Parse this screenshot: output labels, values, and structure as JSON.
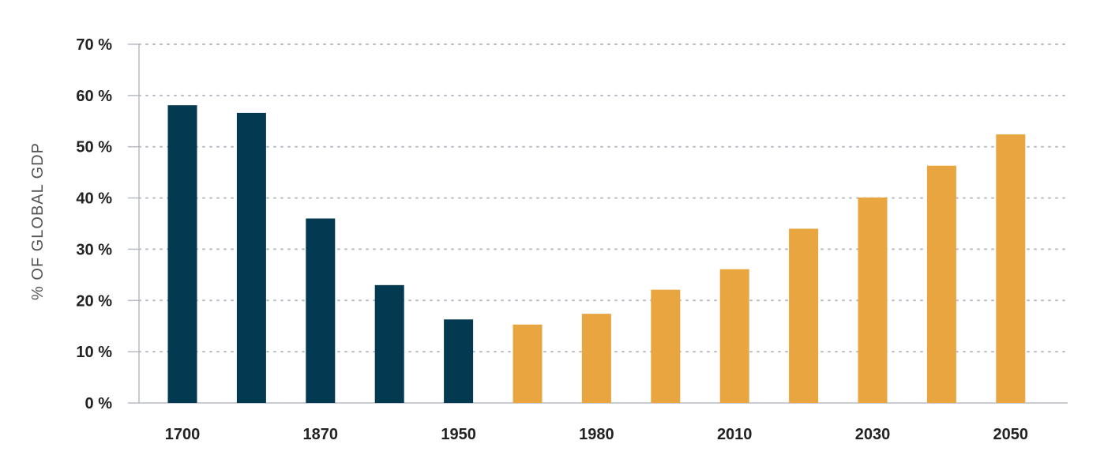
{
  "chart_data": {
    "type": "bar",
    "title": "",
    "xlabel": "",
    "ylabel": "% OF GLOBAL GDP",
    "ylim": [
      0,
      70
    ],
    "y_ticks": [
      {
        "value": 0,
        "label": "0 %"
      },
      {
        "value": 10,
        "label": "10 %"
      },
      {
        "value": 20,
        "label": "20 %"
      },
      {
        "value": 30,
        "label": "30 %"
      },
      {
        "value": 40,
        "label": "40 %"
      },
      {
        "value": 50,
        "label": "50 %"
      },
      {
        "value": 60,
        "label": "60 %"
      },
      {
        "value": 70,
        "label": "70 %"
      }
    ],
    "grid": true,
    "colors": {
      "historical": "#033a52",
      "projected": "#e9a53f",
      "grid": "#b7bcc4",
      "axis": "#b7bcc4"
    },
    "bars": [
      {
        "label": "1700",
        "value": 58.1,
        "group": "historical"
      },
      {
        "label": "",
        "value": 56.6,
        "group": "historical"
      },
      {
        "label": "1870",
        "value": 36.0,
        "group": "historical"
      },
      {
        "label": "",
        "value": 23.0,
        "group": "historical"
      },
      {
        "label": "1950",
        "value": 16.3,
        "group": "historical"
      },
      {
        "label": "",
        "value": 15.3,
        "group": "projected"
      },
      {
        "label": "1980",
        "value": 17.4,
        "group": "projected"
      },
      {
        "label": "",
        "value": 22.1,
        "group": "projected"
      },
      {
        "label": "2010",
        "value": 26.1,
        "group": "projected"
      },
      {
        "label": "",
        "value": 34.0,
        "group": "projected"
      },
      {
        "label": "2030",
        "value": 40.1,
        "group": "projected"
      },
      {
        "label": "",
        "value": 46.3,
        "group": "projected"
      },
      {
        "label": "2050",
        "value": 52.4,
        "group": "projected"
      }
    ]
  }
}
